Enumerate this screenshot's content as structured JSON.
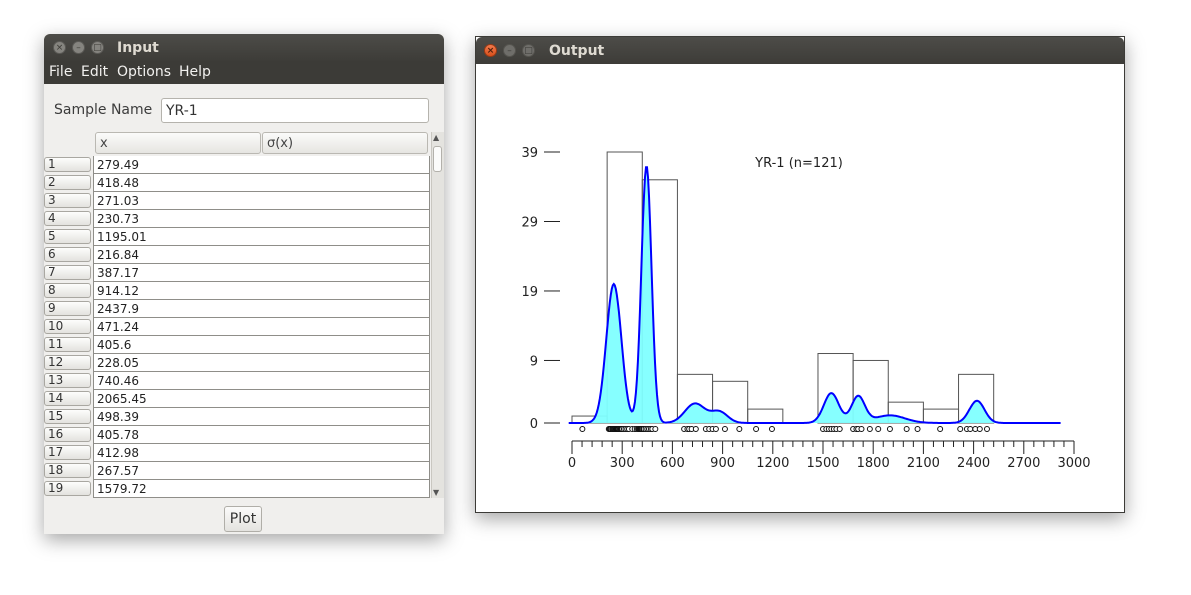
{
  "input_window": {
    "title": "Input",
    "menu": [
      "File",
      "Edit",
      "Options",
      "Help"
    ],
    "sample_name_label": "Sample Name",
    "sample_name_value": "YR-1",
    "columns": [
      "x",
      "σ(x)"
    ],
    "rows": [
      {
        "n": "1",
        "x": "279.49",
        "s": ""
      },
      {
        "n": "2",
        "x": "418.48",
        "s": ""
      },
      {
        "n": "3",
        "x": "271.03",
        "s": ""
      },
      {
        "n": "4",
        "x": "230.73",
        "s": ""
      },
      {
        "n": "5",
        "x": "1195.01",
        "s": ""
      },
      {
        "n": "6",
        "x": "216.84",
        "s": ""
      },
      {
        "n": "7",
        "x": "387.17",
        "s": ""
      },
      {
        "n": "8",
        "x": "914.12",
        "s": ""
      },
      {
        "n": "9",
        "x": "2437.9",
        "s": ""
      },
      {
        "n": "10",
        "x": "471.24",
        "s": ""
      },
      {
        "n": "11",
        "x": "405.6",
        "s": ""
      },
      {
        "n": "12",
        "x": "228.05",
        "s": ""
      },
      {
        "n": "13",
        "x": "740.46",
        "s": ""
      },
      {
        "n": "14",
        "x": "2065.45",
        "s": ""
      },
      {
        "n": "15",
        "x": "498.39",
        "s": ""
      },
      {
        "n": "16",
        "x": "405.78",
        "s": ""
      },
      {
        "n": "17",
        "x": "412.98",
        "s": ""
      },
      {
        "n": "18",
        "x": "267.57",
        "s": ""
      },
      {
        "n": "19",
        "x": "1579.72",
        "s": ""
      }
    ],
    "plot_button": "Plot"
  },
  "output_window": {
    "title": "Output"
  },
  "chart_data": {
    "type": "histogram+kde",
    "title": "YR-1 (n=121)",
    "xlabel": "",
    "ylabel": "",
    "xlim": [
      0,
      3000
    ],
    "ylim": [
      0,
      39
    ],
    "xticks": [
      0,
      300,
      600,
      900,
      1200,
      1500,
      1800,
      2100,
      2400,
      2700,
      3000
    ],
    "yticks": [
      0,
      9,
      19,
      29,
      39
    ],
    "histogram_bins": [
      {
        "from": 0,
        "to": 210,
        "count": 1
      },
      {
        "from": 210,
        "to": 420,
        "count": 39
      },
      {
        "from": 420,
        "to": 630,
        "count": 35
      },
      {
        "from": 630,
        "to": 840,
        "count": 7
      },
      {
        "from": 840,
        "to": 1050,
        "count": 6
      },
      {
        "from": 1050,
        "to": 1260,
        "count": 2
      },
      {
        "from": 1260,
        "to": 1470,
        "count": 0
      },
      {
        "from": 1470,
        "to": 1680,
        "count": 10
      },
      {
        "from": 1680,
        "to": 1890,
        "count": 9
      },
      {
        "from": 1890,
        "to": 2100,
        "count": 3
      },
      {
        "from": 2100,
        "to": 2310,
        "count": 2
      },
      {
        "from": 2310,
        "to": 2520,
        "count": 7
      }
    ],
    "kde_components": [
      {
        "mu": 250,
        "sigma": 45,
        "peak": 20
      },
      {
        "mu": 445,
        "sigma": 30,
        "peak": 37
      },
      {
        "mu": 735,
        "sigma": 60,
        "peak": 2.8
      },
      {
        "mu": 880,
        "sigma": 50,
        "peak": 1.6
      },
      {
        "mu": 1550,
        "sigma": 45,
        "peak": 4.3
      },
      {
        "mu": 1710,
        "sigma": 40,
        "peak": 3.8
      },
      {
        "mu": 1900,
        "sigma": 90,
        "peak": 1.1
      },
      {
        "mu": 2420,
        "sigma": 45,
        "peak": 3.2
      }
    ],
    "kde_color": "#0000ff",
    "kde_fill": "#7fffff",
    "ages": [
      62,
      220,
      225,
      230,
      232,
      240,
      245,
      250,
      255,
      260,
      265,
      268,
      271,
      275,
      279,
      285,
      290,
      295,
      300,
      310,
      320,
      330,
      340,
      360,
      375,
      387,
      395,
      400,
      405,
      406,
      410,
      413,
      418,
      425,
      430,
      440,
      450,
      460,
      471,
      480,
      498,
      670,
      690,
      700,
      715,
      740,
      800,
      820,
      840,
      860,
      914,
      1000,
      1100,
      1195,
      1500,
      1520,
      1535,
      1550,
      1565,
      1580,
      1600,
      1680,
      1700,
      1710,
      1730,
      1780,
      1830,
      1900,
      2000,
      2065,
      2200,
      2320,
      2360,
      2380,
      2410,
      2437,
      2480
    ]
  }
}
